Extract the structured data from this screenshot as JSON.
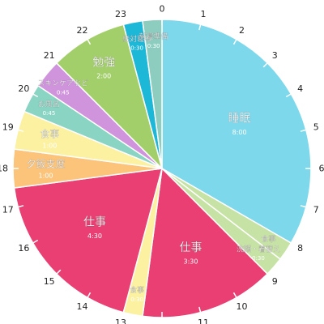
{
  "chart_data": {
    "type": "pie",
    "title": "",
    "unit": "hours",
    "total_hours": 24,
    "start_hour": 0,
    "hour_labels": [
      "0",
      "1",
      "2",
      "3",
      "4",
      "5",
      "6",
      "7",
      "8",
      "9",
      "10",
      "11",
      "12",
      "13",
      "14",
      "15",
      "16",
      "17",
      "18",
      "19",
      "20",
      "21",
      "22",
      "23"
    ],
    "segments": [
      {
        "name": "睡眠",
        "duration_label": "8:00",
        "hours": 8.0,
        "color": "#7dd8ec"
      },
      {
        "name": "食事",
        "duration_label": "",
        "hours": 0.5,
        "color": "#c6e2a4"
      },
      {
        "name": "洗顔・着替え",
        "duration_label": "0:30",
        "hours": 0.5,
        "color": "#c6e2a4"
      },
      {
        "name": "仕事",
        "duration_label": "3:30",
        "hours": 3.5,
        "color": "#e93f73"
      },
      {
        "name": "食事",
        "duration_label": "0:30",
        "hours": 0.5,
        "color": "#fbf1a0"
      },
      {
        "name": "仕事",
        "duration_label": "4:30",
        "hours": 4.5,
        "color": "#e93f73"
      },
      {
        "name": "夕飯支度",
        "duration_label": "1:00",
        "hours": 1.0,
        "color": "#fcc47a"
      },
      {
        "name": "食事",
        "duration_label": "1:00",
        "hours": 1.0,
        "color": "#fbf1a0"
      },
      {
        "name": "お風呂",
        "duration_label": "0:45",
        "hours": 0.75,
        "color": "#8ad4c4"
      },
      {
        "name": "スキンケアなど",
        "duration_label": "0:45",
        "hours": 0.75,
        "color": "#cf94dc"
      },
      {
        "name": "勉強",
        "duration_label": "2:00",
        "hours": 2.0,
        "color": "#a3cf6b"
      },
      {
        "name": "絶対寝る",
        "duration_label": "0:30",
        "hours": 0.5,
        "color": "#1db8d8"
      },
      {
        "name": "就寝準備",
        "duration_label": "0:30",
        "hours": 0.5,
        "color": "#8ccdc0"
      }
    ]
  }
}
